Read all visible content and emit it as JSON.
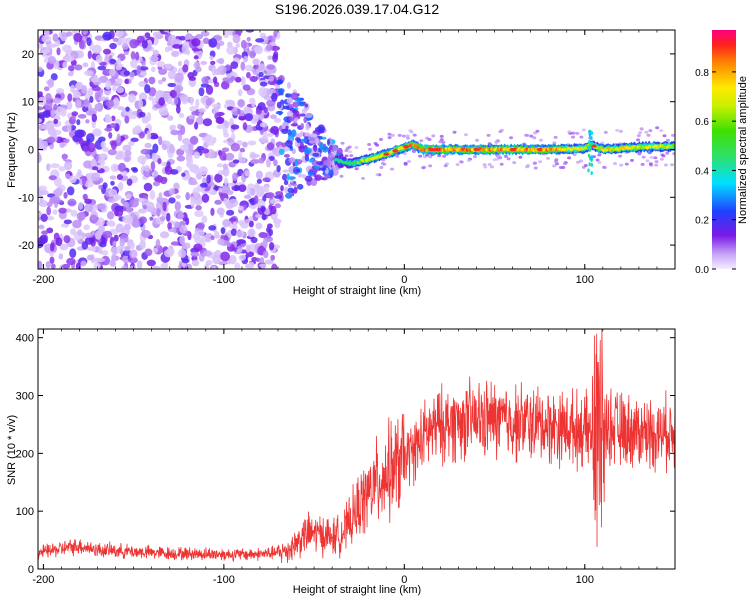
{
  "title": "S196.2026.039.17.04.G12",
  "colors": {
    "snr_line": "#ee3333",
    "axis": "#000000"
  },
  "chart_data": [
    {
      "type": "heatmap",
      "name": "spectrogram",
      "xlabel": "Height of straight line (km)",
      "ylabel": "Frequency (Hz)",
      "xlim": [
        -203,
        150
      ],
      "ylim": [
        -25,
        25
      ],
      "xticks": [
        -200,
        -100,
        0,
        100
      ],
      "yticks": [
        -20,
        -10,
        0,
        10,
        20
      ],
      "colorbar": {
        "label": "Normalized spectral amplitude",
        "range": [
          0,
          0.97
        ],
        "ticks": [
          0.0,
          0.2,
          0.4,
          0.6,
          0.8
        ]
      },
      "noise_region_x": [
        -203,
        -70
      ],
      "transition_region_x": [
        -70,
        -35
      ],
      "signal_trace": {
        "x": [
          -60,
          -50,
          -40,
          -30,
          -20,
          -10,
          0,
          5,
          10,
          20,
          40,
          60,
          80,
          100,
          103,
          110,
          130,
          150
        ],
        "freq_hz": [
          2,
          0,
          -2,
          -3,
          -2,
          -1,
          0.5,
          1,
          0,
          0,
          0,
          0,
          0,
          0.2,
          1,
          0,
          0.5,
          0.7
        ],
        "amplitude": [
          0.5,
          0.45,
          0.4,
          0.5,
          0.7,
          0.75,
          0.8,
          0.85,
          0.9,
          0.85,
          0.85,
          0.85,
          0.8,
          0.7,
          0.6,
          0.75,
          0.7,
          0.65
        ]
      }
    },
    {
      "type": "line",
      "name": "snr",
      "xlabel": "Height of straight line (km)",
      "ylabel": "SNR (10 * v/v)",
      "xlim": [
        -203,
        150
      ],
      "ylim": [
        0,
        415
      ],
      "xticks": [
        -200,
        -100,
        0,
        100
      ],
      "yticks": [
        0,
        100,
        200,
        300,
        400
      ],
      "series": [
        {
          "name": "SNR",
          "x": [
            -203,
            -190,
            -180,
            -170,
            -150,
            -130,
            -110,
            -90,
            -80,
            -70,
            -65,
            -60,
            -55,
            -50,
            -45,
            -40,
            -35,
            -30,
            -25,
            -20,
            -15,
            -10,
            -5,
            0,
            5,
            10,
            15,
            20,
            30,
            40,
            50,
            60,
            70,
            80,
            90,
            100,
            104,
            106,
            107,
            108,
            110,
            115,
            120,
            130,
            140,
            150
          ],
          "values": [
            28,
            35,
            40,
            33,
            30,
            27,
            26,
            25,
            26,
            28,
            32,
            45,
            60,
            62,
            60,
            55,
            60,
            80,
            110,
            130,
            150,
            165,
            175,
            190,
            205,
            225,
            240,
            248,
            255,
            258,
            258,
            255,
            252,
            248,
            245,
            240,
            230,
            200,
            100,
            220,
            250,
            245,
            240,
            238,
            235,
            238
          ]
        }
      ]
    }
  ]
}
